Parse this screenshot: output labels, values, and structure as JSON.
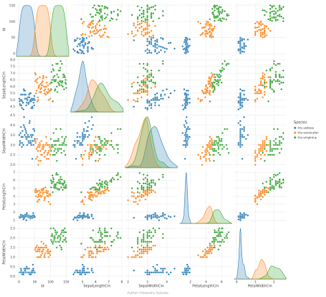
{
  "chart_data": {
    "type": "pairplot",
    "variables": [
      "Id",
      "SepalLengthCm",
      "SepalWidthCm",
      "PetalLengthCm",
      "PetalWidthCm"
    ],
    "axes": [
      {
        "lim": [
          -8,
          158
        ],
        "xticks": [
          0,
          50,
          100,
          150
        ],
        "yticks": [
          0,
          50,
          100,
          150
        ]
      },
      {
        "lim": [
          4.1,
          8.1
        ],
        "xticks": [
          5,
          6,
          7,
          8
        ],
        "yticks": [
          {
            "value": 4.5,
            "label": "4.5"
          },
          {
            "value": 5,
            "label": "5.0"
          },
          {
            "value": 5.5,
            "label": "5.5"
          },
          {
            "value": 6,
            "label": "6.0"
          },
          {
            "value": 6.5,
            "label": "6.5"
          },
          {
            "value": 7,
            "label": "7.0"
          },
          {
            "value": 7.5,
            "label": "7.5"
          },
          {
            "value": 8,
            "label": "8.0"
          }
        ]
      },
      {
        "lim": [
          1.85,
          4.55
        ],
        "xticks": [
          2,
          3,
          4
        ],
        "yticks": [
          {
            "value": 2,
            "label": "2.0"
          },
          {
            "value": 2.5,
            "label": "2.5"
          },
          {
            "value": 3,
            "label": "3.0"
          },
          {
            "value": 3.5,
            "label": "3.5"
          },
          {
            "value": 4,
            "label": "4.0"
          },
          {
            "value": 4.5,
            "label": "4.5"
          }
        ]
      },
      {
        "lim": [
          0.6,
          7.3
        ],
        "xticks": [
          2,
          4,
          6
        ],
        "yticks": [
          1,
          2,
          3,
          4,
          5,
          6,
          7
        ]
      },
      {
        "lim": [
          -0.15,
          2.65
        ],
        "xticks": [
          0,
          1,
          2
        ],
        "yticks": [
          {
            "value": 0,
            "label": "0.0"
          },
          {
            "value": 0.5,
            "label": "0.5"
          },
          {
            "value": 1,
            "label": "1.0"
          },
          {
            "value": 1.5,
            "label": "1.5"
          },
          {
            "value": 2,
            "label": "2.0"
          },
          {
            "value": 2.5,
            "label": "2.5"
          }
        ]
      }
    ],
    "grid": true,
    "legend_title": "Species",
    "legend": "right",
    "footer": "Author: Himanshu Salunke",
    "series": [
      {
        "name": "Iris-setosa",
        "color": "#1f77b4",
        "rows": [
          [
            1,
            5.1,
            3.5,
            1.4,
            0.2
          ],
          [
            2,
            4.9,
            3.0,
            1.4,
            0.2
          ],
          [
            3,
            4.7,
            3.2,
            1.3,
            0.2
          ],
          [
            4,
            4.6,
            3.1,
            1.5,
            0.2
          ],
          [
            5,
            5.0,
            3.6,
            1.4,
            0.2
          ],
          [
            6,
            5.4,
            3.9,
            1.7,
            0.4
          ],
          [
            7,
            4.6,
            3.4,
            1.4,
            0.3
          ],
          [
            8,
            5.0,
            3.4,
            1.5,
            0.2
          ],
          [
            9,
            4.4,
            2.9,
            1.4,
            0.2
          ],
          [
            10,
            4.9,
            3.1,
            1.5,
            0.1
          ],
          [
            11,
            5.4,
            3.7,
            1.5,
            0.2
          ],
          [
            12,
            4.8,
            3.4,
            1.6,
            0.2
          ],
          [
            13,
            4.8,
            3.0,
            1.4,
            0.1
          ],
          [
            14,
            4.3,
            3.0,
            1.1,
            0.1
          ],
          [
            15,
            5.8,
            4.0,
            1.2,
            0.2
          ],
          [
            16,
            5.7,
            4.4,
            1.5,
            0.4
          ],
          [
            17,
            5.4,
            3.9,
            1.3,
            0.4
          ],
          [
            18,
            5.1,
            3.5,
            1.4,
            0.3
          ],
          [
            19,
            5.7,
            3.8,
            1.7,
            0.3
          ],
          [
            20,
            5.1,
            3.8,
            1.5,
            0.3
          ],
          [
            21,
            5.4,
            3.4,
            1.7,
            0.2
          ],
          [
            22,
            5.1,
            3.7,
            1.5,
            0.4
          ],
          [
            23,
            4.6,
            3.6,
            1.0,
            0.2
          ],
          [
            24,
            5.1,
            3.3,
            1.7,
            0.5
          ],
          [
            25,
            4.8,
            3.4,
            1.9,
            0.2
          ],
          [
            26,
            5.0,
            3.0,
            1.6,
            0.2
          ],
          [
            27,
            5.0,
            3.4,
            1.6,
            0.4
          ],
          [
            28,
            5.2,
            3.5,
            1.5,
            0.2
          ],
          [
            29,
            5.2,
            3.4,
            1.4,
            0.2
          ],
          [
            30,
            4.7,
            3.2,
            1.6,
            0.2
          ],
          [
            31,
            4.8,
            3.1,
            1.6,
            0.2
          ],
          [
            32,
            5.4,
            3.4,
            1.5,
            0.4
          ],
          [
            33,
            5.2,
            4.1,
            1.5,
            0.1
          ],
          [
            34,
            5.5,
            4.2,
            1.4,
            0.2
          ],
          [
            35,
            4.9,
            3.1,
            1.5,
            0.1
          ],
          [
            36,
            5.0,
            3.2,
            1.2,
            0.2
          ],
          [
            37,
            5.5,
            3.5,
            1.3,
            0.2
          ],
          [
            38,
            4.9,
            3.1,
            1.5,
            0.1
          ],
          [
            39,
            4.4,
            3.0,
            1.3,
            0.2
          ],
          [
            40,
            5.1,
            3.4,
            1.5,
            0.2
          ],
          [
            41,
            5.0,
            3.5,
            1.3,
            0.3
          ],
          [
            42,
            4.5,
            2.3,
            1.3,
            0.3
          ],
          [
            43,
            4.4,
            3.2,
            1.3,
            0.2
          ],
          [
            44,
            5.0,
            3.5,
            1.6,
            0.6
          ],
          [
            45,
            5.1,
            3.8,
            1.9,
            0.4
          ],
          [
            46,
            4.8,
            3.0,
            1.4,
            0.3
          ],
          [
            47,
            5.1,
            3.8,
            1.6,
            0.2
          ],
          [
            48,
            4.6,
            3.2,
            1.4,
            0.2
          ],
          [
            49,
            5.3,
            3.7,
            1.5,
            0.2
          ],
          [
            50,
            5.0,
            3.3,
            1.4,
            0.2
          ]
        ]
      },
      {
        "name": "Iris-versicolor",
        "color": "#ff7f0e",
        "rows": [
          [
            51,
            7.0,
            3.2,
            4.7,
            1.4
          ],
          [
            52,
            6.4,
            3.2,
            4.5,
            1.5
          ],
          [
            53,
            6.9,
            3.1,
            4.9,
            1.5
          ],
          [
            54,
            5.5,
            2.3,
            4.0,
            1.3
          ],
          [
            55,
            6.5,
            2.8,
            4.6,
            1.5
          ],
          [
            56,
            5.7,
            2.8,
            4.5,
            1.3
          ],
          [
            57,
            6.3,
            3.3,
            4.7,
            1.6
          ],
          [
            58,
            4.9,
            2.4,
            3.3,
            1.0
          ],
          [
            59,
            6.6,
            2.9,
            4.6,
            1.3
          ],
          [
            60,
            5.2,
            2.7,
            3.9,
            1.4
          ],
          [
            61,
            5.0,
            2.0,
            3.5,
            1.0
          ],
          [
            62,
            5.9,
            3.0,
            4.2,
            1.5
          ],
          [
            63,
            6.0,
            2.2,
            4.0,
            1.0
          ],
          [
            64,
            6.1,
            2.9,
            4.7,
            1.4
          ],
          [
            65,
            5.6,
            2.9,
            3.6,
            1.3
          ],
          [
            66,
            6.7,
            3.1,
            4.4,
            1.4
          ],
          [
            67,
            5.6,
            3.0,
            4.5,
            1.5
          ],
          [
            68,
            5.8,
            2.7,
            4.1,
            1.0
          ],
          [
            69,
            6.2,
            2.2,
            4.5,
            1.5
          ],
          [
            70,
            5.6,
            2.5,
            3.9,
            1.1
          ],
          [
            71,
            5.9,
            3.2,
            4.8,
            1.8
          ],
          [
            72,
            6.1,
            2.8,
            4.0,
            1.3
          ],
          [
            73,
            6.3,
            2.5,
            4.9,
            1.5
          ],
          [
            74,
            6.1,
            2.8,
            4.7,
            1.2
          ],
          [
            75,
            6.4,
            2.9,
            4.3,
            1.3
          ],
          [
            76,
            6.6,
            3.0,
            4.4,
            1.4
          ],
          [
            77,
            6.8,
            2.8,
            4.8,
            1.4
          ],
          [
            78,
            6.7,
            3.0,
            5.0,
            1.7
          ],
          [
            79,
            6.0,
            2.9,
            4.5,
            1.5
          ],
          [
            80,
            5.7,
            2.6,
            3.5,
            1.0
          ],
          [
            81,
            5.5,
            2.4,
            3.8,
            1.1
          ],
          [
            82,
            5.5,
            2.4,
            3.7,
            1.0
          ],
          [
            83,
            5.8,
            2.7,
            3.9,
            1.2
          ],
          [
            84,
            6.0,
            2.7,
            5.1,
            1.6
          ],
          [
            85,
            5.4,
            3.0,
            4.5,
            1.5
          ],
          [
            86,
            6.0,
            3.4,
            4.5,
            1.6
          ],
          [
            87,
            6.7,
            3.1,
            4.7,
            1.5
          ],
          [
            88,
            6.3,
            2.3,
            4.4,
            1.3
          ],
          [
            89,
            5.6,
            3.0,
            4.1,
            1.3
          ],
          [
            90,
            5.5,
            2.5,
            4.0,
            1.3
          ],
          [
            91,
            5.5,
            2.6,
            4.4,
            1.2
          ],
          [
            92,
            6.1,
            3.0,
            4.6,
            1.4
          ],
          [
            93,
            5.8,
            2.6,
            4.0,
            1.2
          ],
          [
            94,
            5.0,
            2.3,
            3.3,
            1.0
          ],
          [
            95,
            5.6,
            2.7,
            4.2,
            1.3
          ],
          [
            96,
            5.7,
            3.0,
            4.2,
            1.2
          ],
          [
            97,
            5.7,
            2.9,
            4.2,
            1.3
          ],
          [
            98,
            6.2,
            2.9,
            4.3,
            1.3
          ],
          [
            99,
            5.1,
            2.5,
            3.0,
            1.1
          ],
          [
            100,
            5.7,
            2.8,
            4.1,
            1.3
          ]
        ]
      },
      {
        "name": "Iris-virginica",
        "color": "#2ca02c",
        "rows": [
          [
            101,
            6.3,
            3.3,
            6.0,
            2.5
          ],
          [
            102,
            5.8,
            2.7,
            5.1,
            1.9
          ],
          [
            103,
            7.1,
            3.0,
            5.9,
            2.1
          ],
          [
            104,
            6.3,
            2.9,
            5.6,
            1.8
          ],
          [
            105,
            6.5,
            3.0,
            5.8,
            2.2
          ],
          [
            106,
            7.6,
            3.0,
            6.6,
            2.1
          ],
          [
            107,
            4.9,
            2.5,
            4.5,
            1.7
          ],
          [
            108,
            7.3,
            2.9,
            6.3,
            1.8
          ],
          [
            109,
            6.7,
            2.5,
            5.8,
            1.8
          ],
          [
            110,
            7.2,
            3.6,
            6.1,
            2.5
          ],
          [
            111,
            6.5,
            3.2,
            5.1,
            2.0
          ],
          [
            112,
            6.4,
            2.7,
            5.3,
            1.9
          ],
          [
            113,
            6.8,
            3.0,
            5.5,
            2.1
          ],
          [
            114,
            5.7,
            2.5,
            5.0,
            2.0
          ],
          [
            115,
            5.8,
            2.8,
            5.1,
            2.4
          ],
          [
            116,
            6.4,
            3.2,
            5.3,
            2.3
          ],
          [
            117,
            6.5,
            3.0,
            5.5,
            1.8
          ],
          [
            118,
            7.7,
            3.8,
            6.7,
            2.2
          ],
          [
            119,
            7.7,
            2.6,
            6.9,
            2.3
          ],
          [
            120,
            6.0,
            2.2,
            5.0,
            1.5
          ],
          [
            121,
            6.9,
            3.2,
            5.7,
            2.3
          ],
          [
            122,
            5.6,
            2.8,
            4.9,
            2.0
          ],
          [
            123,
            7.7,
            2.8,
            6.7,
            2.0
          ],
          [
            124,
            6.3,
            2.7,
            4.9,
            1.8
          ],
          [
            125,
            6.7,
            3.3,
            5.7,
            2.1
          ],
          [
            126,
            7.2,
            3.2,
            6.0,
            1.8
          ],
          [
            127,
            6.2,
            2.8,
            4.8,
            1.8
          ],
          [
            128,
            6.1,
            3.0,
            4.9,
            1.8
          ],
          [
            129,
            6.4,
            2.8,
            5.6,
            2.1
          ],
          [
            130,
            7.2,
            3.0,
            5.8,
            1.6
          ],
          [
            131,
            7.4,
            2.8,
            6.1,
            1.9
          ],
          [
            132,
            7.9,
            3.8,
            6.4,
            2.0
          ],
          [
            133,
            6.4,
            2.8,
            5.6,
            2.2
          ],
          [
            134,
            6.3,
            2.8,
            5.1,
            1.5
          ],
          [
            135,
            6.1,
            2.6,
            5.6,
            1.4
          ],
          [
            136,
            7.7,
            3.0,
            6.1,
            2.3
          ],
          [
            137,
            6.3,
            3.4,
            5.6,
            2.4
          ],
          [
            138,
            6.4,
            3.1,
            5.5,
            1.8
          ],
          [
            139,
            6.0,
            3.0,
            4.8,
            1.8
          ],
          [
            140,
            6.9,
            3.1,
            5.4,
            2.1
          ],
          [
            141,
            6.7,
            3.1,
            5.6,
            2.4
          ],
          [
            142,
            6.9,
            3.1,
            5.1,
            2.3
          ],
          [
            143,
            5.8,
            2.7,
            5.1,
            1.9
          ],
          [
            144,
            6.8,
            3.2,
            5.9,
            2.3
          ],
          [
            145,
            6.7,
            3.3,
            5.7,
            2.5
          ],
          [
            146,
            6.7,
            3.0,
            5.2,
            2.3
          ],
          [
            147,
            6.3,
            2.5,
            5.0,
            1.9
          ],
          [
            148,
            6.5,
            3.0,
            5.2,
            2.0
          ],
          [
            149,
            6.2,
            3.4,
            5.4,
            2.3
          ],
          [
            150,
            5.9,
            3.0,
            5.1,
            1.8
          ]
        ]
      }
    ]
  }
}
